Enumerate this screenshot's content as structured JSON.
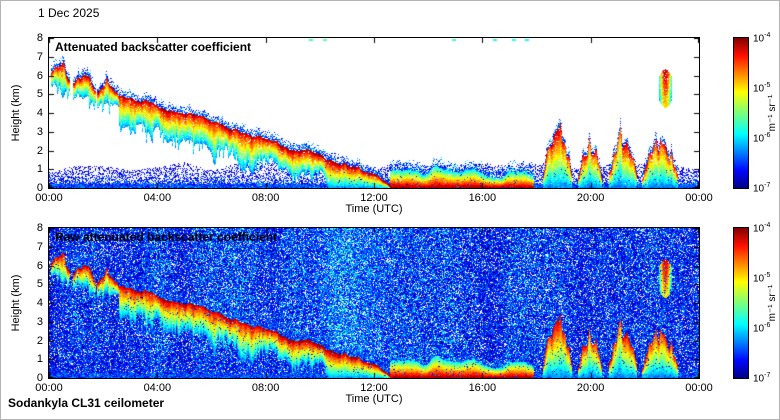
{
  "date_label": "1 Dec 2025",
  "footer_label": "Sodankyla CL31 ceilometer",
  "axes": {
    "xlabel": "Time (UTC)",
    "ylabel": "Height (km)",
    "x_tick_labels": [
      "00:00",
      "04:00",
      "08:00",
      "12:00",
      "16:00",
      "20:00",
      "00:00"
    ],
    "x_tick_hours": [
      0,
      4,
      8,
      12,
      16,
      20,
      24
    ],
    "y_tick_labels": [
      "0",
      "1",
      "2",
      "3",
      "4",
      "5",
      "6",
      "7",
      "8"
    ],
    "y_tick_km": [
      0,
      1,
      2,
      3,
      4,
      5,
      6,
      7,
      8
    ]
  },
  "colorbar": {
    "base": "10",
    "tick_exponents": [
      "-4",
      "-5",
      "-6",
      "-7"
    ],
    "unit": "m⁻¹ sr⁻¹",
    "scale": "log",
    "colormap": "jet"
  },
  "chart_data": {
    "type": "heatmap",
    "x_range_hours": [
      0,
      24
    ],
    "y_range_km": [
      0,
      8
    ],
    "value_unit": "m^-1 sr^-1",
    "value_log10_range": [
      -7,
      -4
    ],
    "colormap": "jet",
    "panels": [
      {
        "name": "processed",
        "title": "Attenuated backscatter coefficient",
        "background": "white"
      },
      {
        "name": "raw",
        "title": "Raw attenuated backscatter coefficient",
        "background": "blue-noise",
        "solar_noise_hours": [
          9.0,
          13.0
        ]
      }
    ],
    "features": {
      "boundary_layer_speckle_top_km": 1.2,
      "early_cloud_patches": [
        {
          "t": [
            0.05,
            0.75
          ],
          "base_km": [
            6.0,
            5.6
          ],
          "top_km": 7.0
        },
        {
          "t": [
            0.9,
            1.7
          ],
          "base_km": [
            5.5,
            5.1
          ],
          "top_km": 6.4
        },
        {
          "t": [
            1.8,
            2.6
          ],
          "base_km": [
            5.0,
            4.75
          ],
          "top_km": 5.9
        }
      ],
      "descending_layer_track": [
        [
          2.6,
          4.9
        ],
        [
          3.5,
          4.5
        ],
        [
          4.5,
          4.15
        ],
        [
          5.5,
          3.7
        ],
        [
          6.5,
          3.2
        ],
        [
          7.5,
          2.75
        ],
        [
          8.5,
          2.3
        ],
        [
          9.5,
          1.85
        ],
        [
          10.5,
          1.4
        ],
        [
          11.5,
          0.9
        ],
        [
          12.2,
          0.45
        ],
        [
          12.6,
          0.12
        ]
      ],
      "descending_layer_depth_km": 1.3,
      "surface_layer": {
        "t": [
          12.6,
          17.9
        ],
        "top_km_range": [
          0.3,
          1.0
        ]
      },
      "late_plumes": [
        {
          "t": [
            18.25,
            19.3
          ],
          "top_km": 2.9
        },
        {
          "t": [
            19.55,
            20.4
          ],
          "top_km": 2.3
        },
        {
          "t": [
            20.7,
            21.7
          ],
          "top_km": 2.7
        },
        {
          "t": [
            21.9,
            23.2
          ],
          "top_km": 2.3
        }
      ],
      "elevated_feature": {
        "t": [
          22.55,
          23.0
        ],
        "h_km": [
          4.3,
          6.3
        ]
      },
      "top_edge_marks_hours": [
        9.6,
        10.15,
        14.9,
        16.4,
        17.1,
        17.6
      ]
    }
  }
}
